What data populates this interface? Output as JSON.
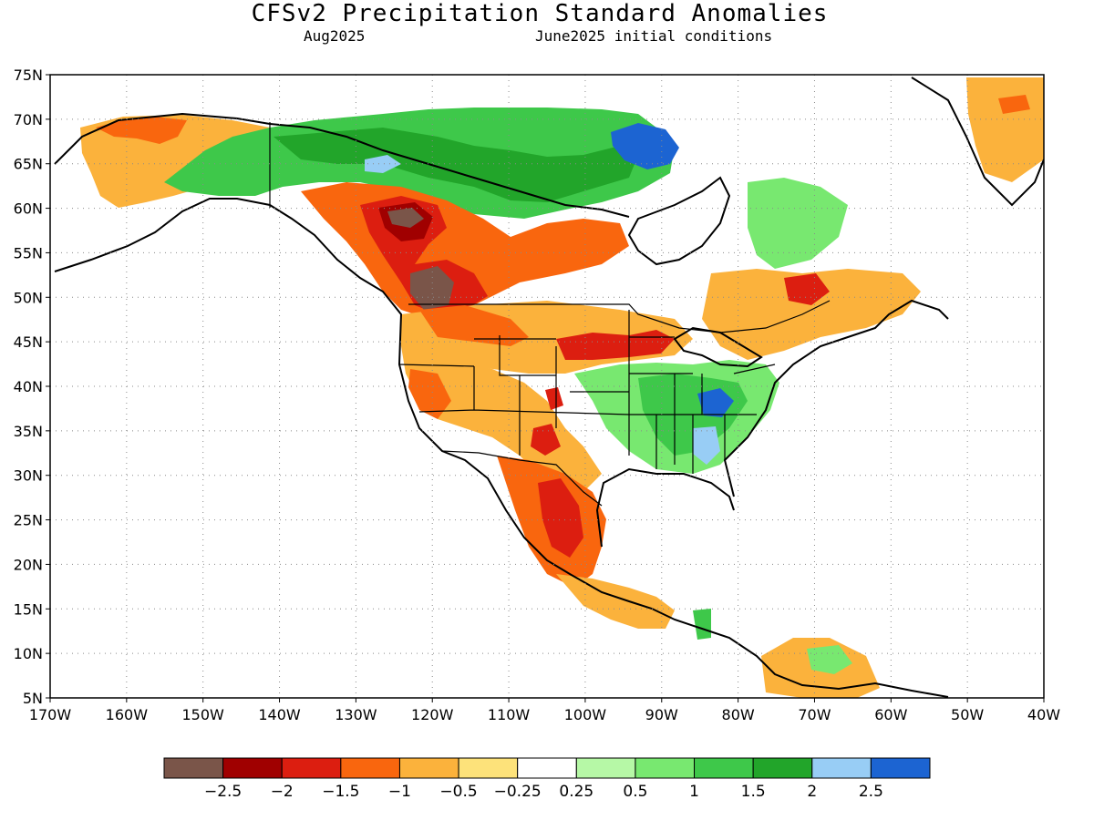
{
  "header": {
    "title": "CFSv2 Precipitation Standard Anomalies",
    "valid_month": "Aug2025",
    "initial_conditions": "June2025 initial conditions"
  },
  "map": {
    "lon_range": [
      -170,
      -40
    ],
    "lat_range": [
      5,
      75
    ],
    "lat_ticks": [
      {
        "value": 75,
        "label": "75N"
      },
      {
        "value": 70,
        "label": "70N"
      },
      {
        "value": 65,
        "label": "65N"
      },
      {
        "value": 60,
        "label": "60N"
      },
      {
        "value": 55,
        "label": "55N"
      },
      {
        "value": 50,
        "label": "50N"
      },
      {
        "value": 45,
        "label": "45N"
      },
      {
        "value": 40,
        "label": "40N"
      },
      {
        "value": 35,
        "label": "35N"
      },
      {
        "value": 30,
        "label": "30N"
      },
      {
        "value": 25,
        "label": "25N"
      },
      {
        "value": 20,
        "label": "20N"
      },
      {
        "value": 15,
        "label": "15N"
      },
      {
        "value": 10,
        "label": "10N"
      },
      {
        "value": 5,
        "label": "5N"
      }
    ],
    "lon_ticks": [
      {
        "value": -170,
        "label": "170W"
      },
      {
        "value": -160,
        "label": "160W"
      },
      {
        "value": -150,
        "label": "150W"
      },
      {
        "value": -140,
        "label": "140W"
      },
      {
        "value": -130,
        "label": "130W"
      },
      {
        "value": -120,
        "label": "120W"
      },
      {
        "value": -110,
        "label": "110W"
      },
      {
        "value": -100,
        "label": "100W"
      },
      {
        "value": -90,
        "label": "90W"
      },
      {
        "value": -80,
        "label": "80W"
      },
      {
        "value": -70,
        "label": "70W"
      },
      {
        "value": -60,
        "label": "60W"
      },
      {
        "value": -50,
        "label": "50W"
      },
      {
        "value": -40,
        "label": "40W"
      }
    ],
    "grid": "dotted"
  },
  "colors": {
    "le_-2.5": "#7a5549",
    "-2.5_-2": "#a00000",
    "-2_-1.5": "#dc1e10",
    "-1.5_-1": "#f9660e",
    "-1_-0.5": "#fbb23c",
    "-0.5_-0.25": "#fde27a",
    "-0.25_0.25": "#ffffff",
    "0.25_0.5": "#b6f8a6",
    "0.5_1": "#78e870",
    "1_1.5": "#3ec84a",
    "1.5_2": "#22a52a",
    "2_2.5": "#98cdf5",
    "ge_2.5": "#1c64d2"
  },
  "colorbar": {
    "colors": [
      "#7a5549",
      "#a00000",
      "#dc1e10",
      "#f9660e",
      "#fbb23c",
      "#fde27a",
      "#ffffff",
      "#b6f8a6",
      "#78e870",
      "#3ec84a",
      "#22a52a",
      "#98cdf5",
      "#1c64d2"
    ],
    "labels": [
      "-2.5",
      "-2",
      "-1.5",
      "-1",
      "-0.5",
      "-0.25",
      "0.25",
      "0.5",
      "1",
      "1.5",
      "2",
      "2.5"
    ]
  },
  "regions": [
    {
      "name": "pacific-northwest-canada",
      "category": "-2.5_-2"
    },
    {
      "name": "southeast-us",
      "category": "1_1.5"
    },
    {
      "name": "northern-canada",
      "category": "1.5_2"
    },
    {
      "name": "hudson-bay",
      "category": "ge_2.5"
    },
    {
      "name": "mexico",
      "category": "-1.5_-1"
    },
    {
      "name": "greenland-south",
      "category": "-1_-0.5"
    },
    {
      "name": "alaska-south",
      "category": "-1_-0.5"
    }
  ]
}
